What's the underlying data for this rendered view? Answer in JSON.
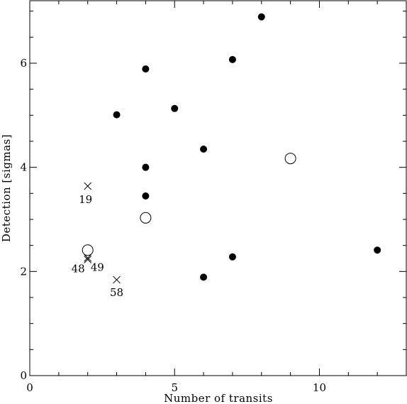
{
  "chart_data": {
    "type": "scatter",
    "xlabel": "Number of transits",
    "ylabel": "Detection [sigmas]",
    "xlim": [
      0,
      13
    ],
    "ylim": [
      0,
      7.2
    ],
    "x_ticks": [
      0,
      5,
      10
    ],
    "y_ticks": [
      0,
      2,
      4,
      6
    ],
    "x_tick_labels": [
      "0",
      "5",
      "10"
    ],
    "y_tick_labels": [
      "0",
      "2",
      "4",
      "6"
    ],
    "grid": false,
    "series": [
      {
        "marker": "filled-circle",
        "points": [
          {
            "x": 3,
            "y": 5.01
          },
          {
            "x": 4,
            "y": 5.89
          },
          {
            "x": 4,
            "y": 4.0
          },
          {
            "x": 4,
            "y": 3.45
          },
          {
            "x": 5,
            "y": 5.13
          },
          {
            "x": 6,
            "y": 4.35
          },
          {
            "x": 6,
            "y": 1.89
          },
          {
            "x": 7,
            "y": 6.07
          },
          {
            "x": 7,
            "y": 2.28
          },
          {
            "x": 8,
            "y": 6.89
          },
          {
            "x": 12,
            "y": 2.41
          }
        ]
      },
      {
        "marker": "open-circle",
        "points": [
          {
            "x": 2,
            "y": 2.41
          },
          {
            "x": 4,
            "y": 3.03
          },
          {
            "x": 9,
            "y": 4.17
          }
        ]
      },
      {
        "marker": "cross",
        "points": [
          {
            "x": 2,
            "y": 3.64,
            "label": "19"
          },
          {
            "x": 2,
            "y": 2.23,
            "label": "48"
          },
          {
            "x": 2,
            "y": 2.26,
            "label": "49"
          },
          {
            "x": 3,
            "y": 1.84,
            "label": "58"
          }
        ]
      }
    ]
  }
}
